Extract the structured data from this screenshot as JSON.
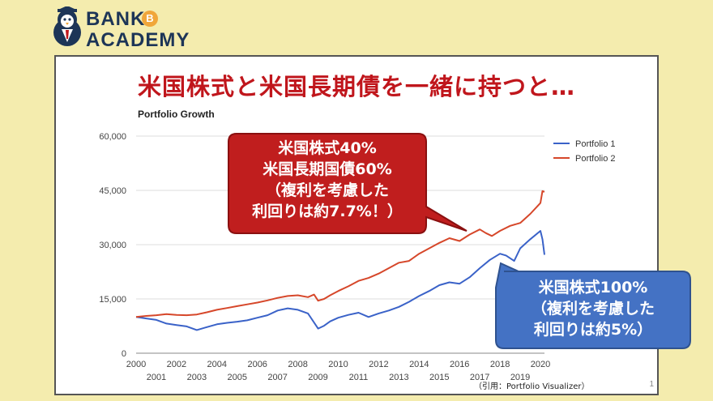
{
  "logo": {
    "line1": "BANK",
    "line2": "ACADEMY",
    "coin_symbol": "B"
  },
  "headline": "米国株式と米国長期債を一緒に持つと…",
  "source_note": "（引用：Portfolio Visualizer）",
  "page_number": "1",
  "callout_red": {
    "lines": [
      "米国株式40%",
      "米国長期国債60%",
      "（複利を考慮した",
      "利回りは約7.7%！）"
    ],
    "color": "#c01e1e"
  },
  "callout_blue": {
    "lines": [
      "米国株式100%",
      "（複利を考慮した",
      "利回りは約5%）"
    ],
    "color": "#4472c4"
  },
  "chart_data": {
    "type": "line",
    "title": "Portfolio Growth",
    "x_ticks_upper": [
      "2000",
      "2002",
      "2004",
      "2006",
      "2008",
      "2010",
      "2012",
      "2014",
      "2016",
      "2018",
      "2020"
    ],
    "x_ticks_lower": [
      "2001",
      "2003",
      "2005",
      "2007",
      "2009",
      "2011",
      "2013",
      "2015",
      "2017",
      "2019"
    ],
    "y_ticks": [
      "0",
      "15,000",
      "30,000",
      "45,000",
      "60,000"
    ],
    "ylim": [
      0,
      60000
    ],
    "xlim": [
      2000,
      2020.2
    ],
    "legend_position": "top-right",
    "grid": true,
    "series": [
      {
        "name": "Portfolio 1",
        "color": "#3a62c8",
        "x": [
          2000,
          2000.5,
          2001,
          2001.5,
          2002,
          2002.5,
          2003,
          2003.5,
          2004,
          2004.5,
          2005,
          2005.5,
          2006,
          2006.5,
          2007,
          2007.5,
          2008,
          2008.5,
          2009,
          2009.3,
          2009.6,
          2010,
          2010.5,
          2011,
          2011.5,
          2012,
          2012.5,
          2013,
          2013.5,
          2014,
          2014.5,
          2015,
          2015.5,
          2016,
          2016.5,
          2017,
          2017.5,
          2018,
          2018.3,
          2018.7,
          2019,
          2019.5,
          2020,
          2020.1,
          2020.2
        ],
        "values": [
          10000,
          9600,
          9200,
          8200,
          7800,
          7400,
          6400,
          7200,
          8000,
          8400,
          8700,
          9100,
          9800,
          10500,
          11800,
          12400,
          12000,
          11000,
          6800,
          7600,
          8800,
          9800,
          10600,
          11200,
          10000,
          11000,
          11800,
          12800,
          14200,
          15800,
          17200,
          18800,
          19600,
          19200,
          21000,
          23500,
          25800,
          27500,
          27000,
          25500,
          29000,
          31500,
          33800,
          31500,
          27200
        ]
      },
      {
        "name": "Portfolio 2",
        "color": "#d6472a",
        "x": [
          2000,
          2000.5,
          2001,
          2001.5,
          2002,
          2002.5,
          2003,
          2003.5,
          2004,
          2004.5,
          2005,
          2005.5,
          2006,
          2006.5,
          2007,
          2007.5,
          2008,
          2008.5,
          2008.8,
          2009,
          2009.3,
          2009.6,
          2010,
          2010.5,
          2011,
          2011.5,
          2012,
          2012.5,
          2013,
          2013.5,
          2014,
          2014.5,
          2015,
          2015.5,
          2016,
          2016.5,
          2017,
          2017.3,
          2017.6,
          2018,
          2018.5,
          2019,
          2019.5,
          2020,
          2020.1,
          2020.2
        ],
        "values": [
          10000,
          10300,
          10500,
          10800,
          10600,
          10500,
          10700,
          11300,
          12000,
          12500,
          13000,
          13500,
          14000,
          14600,
          15300,
          15800,
          16000,
          15500,
          16200,
          14500,
          15000,
          16000,
          17200,
          18500,
          20000,
          20800,
          22000,
          23500,
          25000,
          25500,
          27500,
          29000,
          30500,
          31800,
          31000,
          32800,
          34200,
          33200,
          32400,
          33800,
          35200,
          36000,
          38500,
          41500,
          44800,
          44600
        ]
      }
    ]
  }
}
